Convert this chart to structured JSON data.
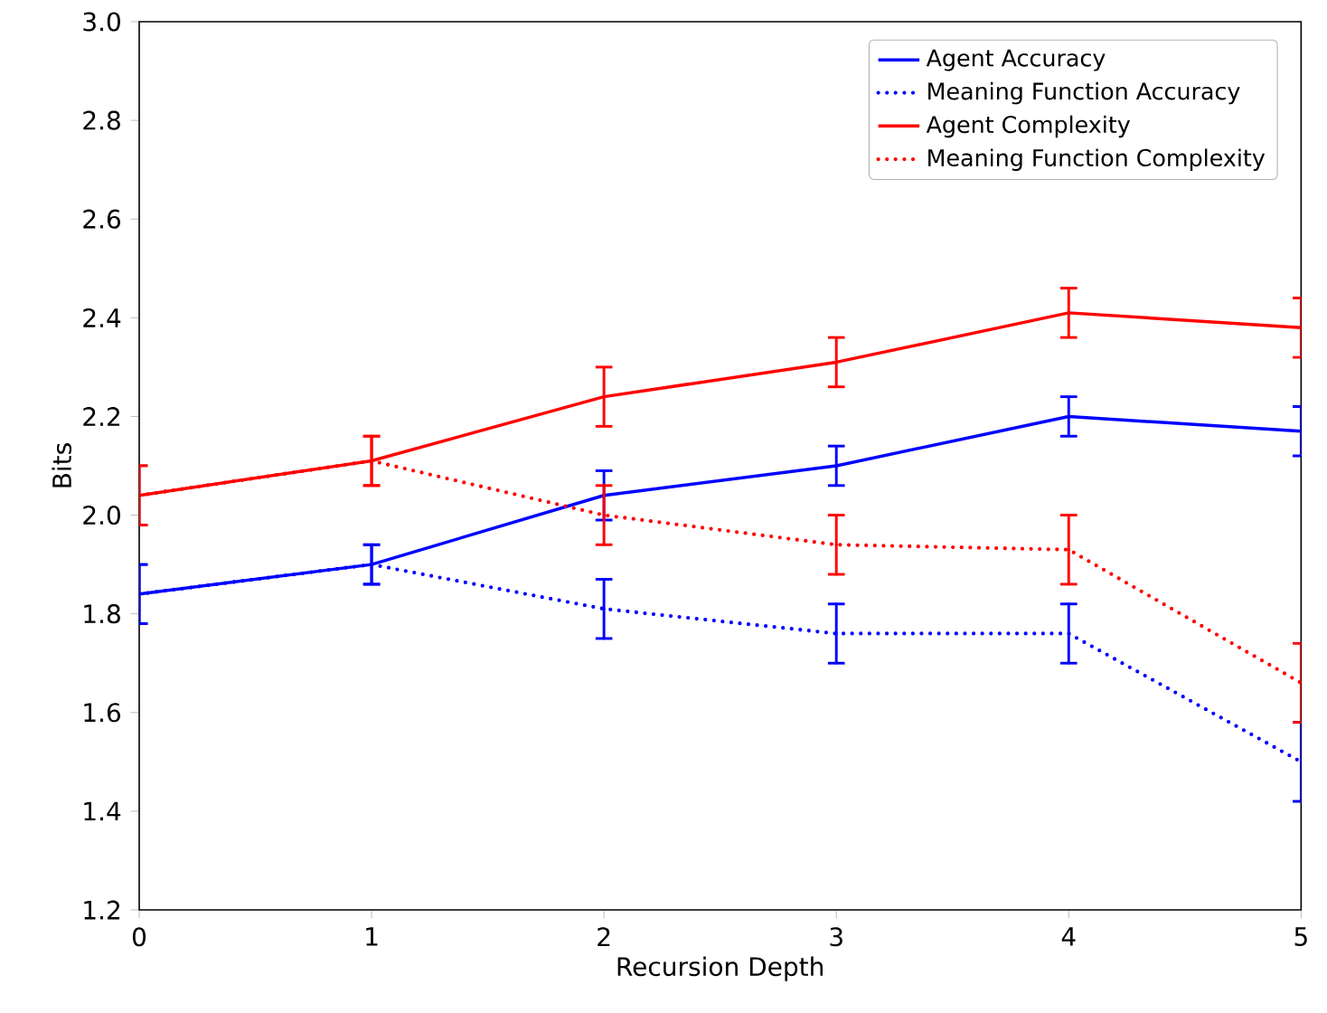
{
  "chart_data": {
    "type": "line",
    "xlabel": "Recursion Depth",
    "ylabel": "Bits",
    "x": [
      0,
      1,
      2,
      3,
      4,
      5
    ],
    "xlim": [
      0,
      5
    ],
    "xticks": [
      0,
      1,
      2,
      3,
      4,
      5
    ],
    "ylim": [
      1.2,
      3.0
    ],
    "yticks": [
      1.2,
      1.4,
      1.6,
      1.8,
      {
        "value": 2,
        "label": "2.0"
      },
      2.2,
      2.4,
      2.6,
      2.8,
      {
        "value": 3,
        "label": "3.0"
      }
    ],
    "legend": "top right",
    "marker": "none",
    "grid": false,
    "series": [
      {
        "name": "Agent Accuracy",
        "color": "#0000ff",
        "line_style": "solid",
        "values": [
          1.84,
          1.9,
          2.04,
          2.1,
          2.2,
          2.17
        ],
        "errors": [
          0.06,
          0.04,
          0.05,
          0.04,
          0.04,
          0.05
        ]
      },
      {
        "name": "Meaning Function Accuracy",
        "color": "#0000ff",
        "line_style": "dotted",
        "values": [
          1.84,
          1.9,
          1.81,
          1.76,
          1.76,
          1.5
        ],
        "errors": [
          0.06,
          0.04,
          0.06,
          0.06,
          0.06,
          0.08
        ]
      },
      {
        "name": "Agent Complexity",
        "color": "#ff0000",
        "line_style": "solid",
        "values": [
          2.04,
          2.11,
          2.24,
          2.31,
          2.41,
          2.38
        ],
        "errors": [
          0.06,
          0.05,
          0.06,
          0.05,
          0.05,
          0.06
        ]
      },
      {
        "name": "Meaning Function Complexity",
        "color": "#ff0000",
        "line_style": "dotted",
        "values": [
          2.04,
          2.11,
          2.0,
          1.94,
          1.93,
          1.66
        ],
        "errors": [
          0.06,
          0.05,
          0.06,
          0.06,
          0.07,
          0.08
        ]
      }
    ]
  }
}
